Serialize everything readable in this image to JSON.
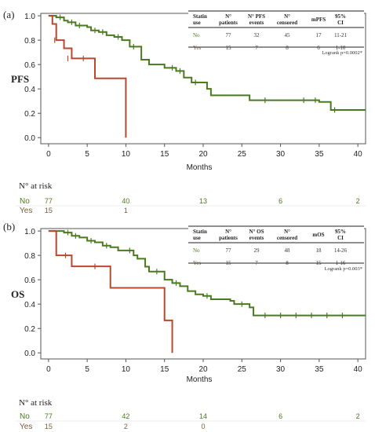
{
  "colors": {
    "no": "#4a7a1e",
    "yes": "#b8482e",
    "yes_light": "#f2a0a0",
    "axis": "#333333",
    "risk_yes_text": "#7a5a3a"
  },
  "chart_data": [
    {
      "type": "line",
      "panel_label": "(a)",
      "ylabel": "PFS",
      "xlabel": "Months",
      "xlim": [
        -1,
        41
      ],
      "ylim": [
        -0.05,
        1.02
      ],
      "xticks": [
        0,
        5,
        10,
        15,
        20,
        25,
        30,
        35,
        40
      ],
      "yticks": [
        "0.0",
        "0.2",
        "0.4",
        "0.6",
        "0.8",
        "1.0"
      ],
      "series": [
        {
          "key": "no",
          "steps": [
            [
              0,
              1.0
            ],
            [
              1,
              0.987
            ],
            [
              2,
              0.96
            ],
            [
              2.5,
              0.947
            ],
            [
              3.5,
              0.92
            ],
            [
              5,
              0.907
            ],
            [
              5.5,
              0.88
            ],
            [
              6.5,
              0.867
            ],
            [
              7.5,
              0.84
            ],
            [
              8.5,
              0.827
            ],
            [
              9.5,
              0.8
            ],
            [
              10.5,
              0.747
            ],
            [
              12,
              0.64
            ],
            [
              13,
              0.6
            ],
            [
              15,
              0.573
            ],
            [
              16.5,
              0.547
            ],
            [
              17.5,
              0.493
            ],
            [
              18.5,
              0.453
            ],
            [
              20.5,
              0.4
            ],
            [
              21,
              0.347
            ],
            [
              26,
              0.307
            ],
            [
              35,
              0.293
            ],
            [
              36.5,
              0.227
            ],
            [
              41,
              0.227
            ]
          ],
          "censors": [
            [
              1.5,
              0.987
            ],
            [
              3,
              0.947
            ],
            [
              4,
              0.92
            ],
            [
              6,
              0.88
            ],
            [
              7,
              0.867
            ],
            [
              9,
              0.827
            ],
            [
              11,
              0.747
            ],
            [
              16,
              0.573
            ],
            [
              17,
              0.547
            ],
            [
              19,
              0.453
            ],
            [
              28,
              0.307
            ],
            [
              33,
              0.307
            ],
            [
              34.5,
              0.307
            ],
            [
              37,
              0.227
            ]
          ]
        },
        {
          "key": "yes",
          "steps": [
            [
              0,
              1.0
            ],
            [
              0.5,
              0.933
            ],
            [
              1,
              0.8
            ],
            [
              2,
              0.733
            ],
            [
              3,
              0.65
            ],
            [
              6,
              0.487
            ],
            [
              10,
              0.487
            ],
            [
              10,
              0.0
            ]
          ],
          "censors": [
            [
              0.8,
              0.8
            ],
            [
              2.5,
              0.65
            ],
            [
              4.5,
              0.65
            ]
          ]
        }
      ],
      "table": {
        "headers": [
          "Statin use",
          "N° patients",
          "N° PFS events",
          "N° censored",
          "mPFS",
          "95% CI"
        ],
        "rows": [
          [
            "No",
            "77",
            "32",
            "45",
            "17",
            "11-21"
          ],
          [
            "Yes",
            "15",
            "7",
            "8",
            "6",
            "1-10"
          ]
        ],
        "logrank": "Logrank p=0.0002*"
      },
      "risk": {
        "title": "N° at risk",
        "labels": [
          "No",
          "Yes"
        ],
        "times": [
          0,
          10,
          20,
          30,
          40
        ],
        "no": [
          "77",
          "40",
          "13",
          "6",
          "2"
        ],
        "yes": [
          "15",
          "1",
          "",
          "",
          ""
        ]
      }
    },
    {
      "type": "line",
      "panel_label": "(b)",
      "ylabel": "OS",
      "xlabel": "Months",
      "xlim": [
        -1,
        41
      ],
      "ylim": [
        -0.05,
        1.02
      ],
      "xticks": [
        0,
        5,
        10,
        15,
        20,
        25,
        30,
        35,
        40
      ],
      "yticks": [
        "0.0",
        "0.2",
        "0.4",
        "0.6",
        "0.8",
        "1.0"
      ],
      "series": [
        {
          "key": "no",
          "steps": [
            [
              0,
              1.0
            ],
            [
              2,
              0.987
            ],
            [
              3,
              0.96
            ],
            [
              4,
              0.947
            ],
            [
              5,
              0.92
            ],
            [
              6,
              0.907
            ],
            [
              7,
              0.88
            ],
            [
              8,
              0.867
            ],
            [
              9,
              0.84
            ],
            [
              10,
              0.84
            ],
            [
              11,
              0.8
            ],
            [
              11.5,
              0.773
            ],
            [
              12.5,
              0.707
            ],
            [
              13,
              0.667
            ],
            [
              15,
              0.6
            ],
            [
              16,
              0.573
            ],
            [
              17,
              0.547
            ],
            [
              18,
              0.507
            ],
            [
              19,
              0.48
            ],
            [
              20,
              0.467
            ],
            [
              21,
              0.44
            ],
            [
              23.5,
              0.427
            ],
            [
              24,
              0.4
            ],
            [
              26,
              0.373
            ],
            [
              26.5,
              0.307
            ],
            [
              41,
              0.307
            ]
          ],
          "censors": [
            [
              2.5,
              0.987
            ],
            [
              3.5,
              0.96
            ],
            [
              5.5,
              0.92
            ],
            [
              7.5,
              0.88
            ],
            [
              10.5,
              0.84
            ],
            [
              14,
              0.667
            ],
            [
              16.5,
              0.573
            ],
            [
              20.5,
              0.467
            ],
            [
              25,
              0.4
            ],
            [
              28,
              0.307
            ],
            [
              30,
              0.307
            ],
            [
              32,
              0.307
            ],
            [
              34,
              0.307
            ],
            [
              36,
              0.307
            ],
            [
              38,
              0.307
            ]
          ]
        },
        {
          "key": "yes",
          "steps": [
            [
              0,
              1.0
            ],
            [
              1,
              0.8
            ],
            [
              3,
              0.71
            ],
            [
              8,
              0.533
            ],
            [
              15,
              0.267
            ],
            [
              16,
              0.0
            ]
          ],
          "censors": [
            [
              2.2,
              0.8
            ],
            [
              6,
              0.71
            ]
          ]
        }
      ],
      "table": {
        "headers": [
          "Statin use",
          "N° patients",
          "N° OS events",
          "N° censored",
          "mOS",
          "95% CI"
        ],
        "rows": [
          [
            "No",
            "77",
            "29",
            "48",
            "18",
            "14-26"
          ],
          [
            "Yes",
            "15",
            "7",
            "8",
            "15",
            "1-16"
          ]
        ],
        "logrank": "Logrank p=0.003*"
      },
      "risk": {
        "title": "N° at risk",
        "labels": [
          "No",
          "Yes"
        ],
        "times": [
          0,
          10,
          20,
          30,
          40
        ],
        "no": [
          "77",
          "42",
          "14",
          "6",
          "2"
        ],
        "yes": [
          "15",
          "2",
          "0",
          "",
          ""
        ]
      }
    }
  ]
}
